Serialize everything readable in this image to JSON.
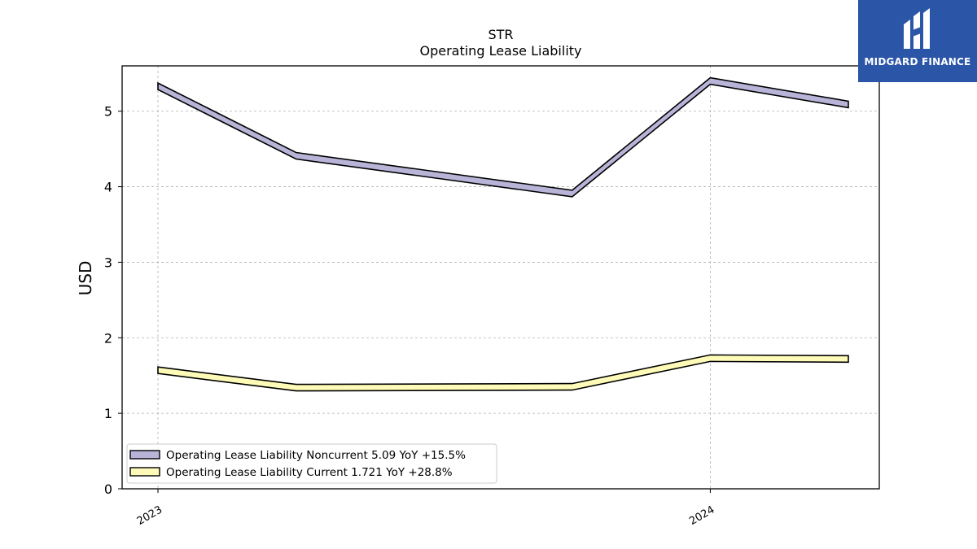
{
  "chart_data": {
    "type": "line",
    "title": "STR",
    "subtitle": "Operating Lease Liability",
    "ylabel": "USD",
    "xlabel": "",
    "ylim": [
      0,
      5.6
    ],
    "yticks": [
      0,
      1,
      2,
      3,
      4,
      5
    ],
    "x": [
      "2023-01",
      "2023-04",
      "2023-07",
      "2023-10",
      "2024-01",
      "2024-04"
    ],
    "xtick_labels": [
      {
        "x": "2023-01",
        "label": "2023"
      },
      {
        "x": "2024-01",
        "label": "2024"
      }
    ],
    "grid": true,
    "legend_position": "lower-left",
    "series": [
      {
        "name": "Operating Lease Liability Noncurrent",
        "legend_label": "Operating Lease Liability Noncurrent  5.09 YoY +15.5%",
        "values": [
          5.33,
          4.41,
          null,
          3.91,
          5.4,
          5.09
        ],
        "color": "#b8b4d8"
      },
      {
        "name": "Operating Lease Liability Current",
        "legend_label": "Operating Lease Liability Current  1.721 YoY +28.8%",
        "values": [
          1.57,
          1.34,
          null,
          1.35,
          1.73,
          1.72
        ],
        "color": "#fefbb8"
      }
    ]
  },
  "logo": {
    "text": "MIDGARD FINANCE",
    "color": "#2b56a8"
  }
}
